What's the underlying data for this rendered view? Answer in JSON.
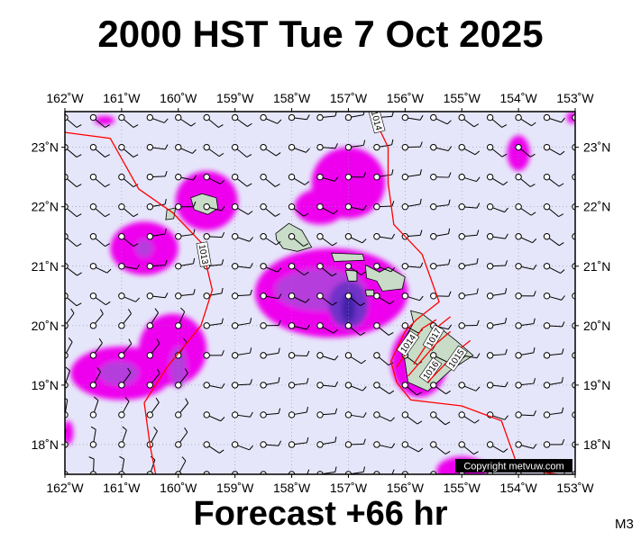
{
  "title": "2000 HST Tue 7 Oct 2025",
  "subtitle": "Forecast +66 hr",
  "model_code": "M3",
  "copyright": "Copyright metvuw.com",
  "colors": {
    "ocean": "#e6e6fa",
    "rain_light": "#ee00ee",
    "rain_medium": "#b43cdc",
    "rain_heavy": "#7030c8",
    "rain_peak": "#4020a8",
    "land": "#c8dcc8",
    "isobar": "#ff0000",
    "frame": "#000000"
  },
  "map": {
    "lon_range": [
      -162,
      -153
    ],
    "lat_range": [
      17.5,
      23.6
    ],
    "lon_ticks": [
      {
        "value": -162,
        "label": "162˚W"
      },
      {
        "value": -161,
        "label": "161˚W"
      },
      {
        "value": -160,
        "label": "160˚W"
      },
      {
        "value": -159,
        "label": "159˚W"
      },
      {
        "value": -158,
        "label": "158˚W"
      },
      {
        "value": -157,
        "label": "157˚W"
      },
      {
        "value": -156,
        "label": "156˚W"
      },
      {
        "value": -155,
        "label": "155˚W"
      },
      {
        "value": -154,
        "label": "154˚W"
      },
      {
        "value": -153,
        "label": "153˚W"
      }
    ],
    "lat_ticks": [
      {
        "value": 18,
        "label": "18˚N"
      },
      {
        "value": 19,
        "label": "19˚N"
      },
      {
        "value": 20,
        "label": "20˚N"
      },
      {
        "value": 21,
        "label": "21˚N"
      },
      {
        "value": 22,
        "label": "22˚N"
      },
      {
        "value": 23,
        "label": "23˚N"
      }
    ],
    "isobars": [
      {
        "label": "1013",
        "label_at": [
          -159.55,
          21.2
        ],
        "label_rot": 80,
        "points": [
          [
            -162.0,
            23.25
          ],
          [
            -161.2,
            23.15
          ],
          [
            -160.7,
            22.3
          ],
          [
            -160.1,
            21.9
          ],
          [
            -159.6,
            21.4
          ],
          [
            -159.4,
            20.6
          ],
          [
            -159.6,
            20.0
          ],
          [
            -160.2,
            19.3
          ],
          [
            -160.6,
            18.7
          ],
          [
            -160.5,
            18.0
          ],
          [
            -160.4,
            17.5
          ]
        ]
      },
      {
        "label": "1014",
        "label_at": [
          -156.5,
          23.45
        ],
        "label_rot": 75,
        "points": [
          [
            -156.6,
            23.6
          ],
          [
            -156.3,
            23.0
          ],
          [
            -156.3,
            22.4
          ],
          [
            -156.2,
            21.7
          ],
          [
            -155.7,
            21.2
          ],
          [
            -155.4,
            20.4
          ],
          [
            -155.8,
            20.1
          ],
          [
            -156.0,
            19.9
          ],
          [
            -156.25,
            19.4
          ],
          [
            -156.15,
            19.05
          ],
          [
            -155.9,
            18.75
          ],
          [
            -155.0,
            18.65
          ],
          [
            -154.3,
            18.4
          ],
          [
            -154.0,
            17.6
          ],
          [
            -153.3,
            17.5
          ],
          [
            -152.9,
            17.4
          ]
        ]
      },
      {
        "label": "1014",
        "label_at": [
          -155.95,
          19.7
        ],
        "label_rot": -55,
        "points": [
          [
            -156.15,
            19.3
          ],
          [
            -155.7,
            19.95
          ],
          [
            -155.45,
            20.1
          ]
        ]
      },
      {
        "label": "1017",
        "label_at": [
          -155.5,
          19.8
        ],
        "label_rot": -60,
        "points": [
          [
            -155.85,
            19.35
          ],
          [
            -155.4,
            20.0
          ],
          [
            -155.2,
            20.15
          ]
        ]
      },
      {
        "label": "1016",
        "label_at": [
          -155.55,
          19.25
        ],
        "label_rot": -55,
        "points": [
          [
            -155.95,
            19.15
          ],
          [
            -155.45,
            19.7
          ],
          [
            -155.2,
            19.9
          ]
        ]
      },
      {
        "label": "1015",
        "label_at": [
          -155.1,
          19.45
        ],
        "label_rot": -55,
        "points": [
          [
            -155.6,
            19.05
          ],
          [
            -155.05,
            19.6
          ],
          [
            -154.85,
            19.75
          ]
        ]
      }
    ],
    "rain_areas": [
      {
        "level": "light",
        "center": [
          -157.3,
          20.55
        ],
        "radii": [
          1.35,
          0.75
        ]
      },
      {
        "level": "light",
        "center": [
          -157.0,
          22.4
        ],
        "radii": [
          0.65,
          0.6
        ]
      },
      {
        "level": "light",
        "center": [
          -157.5,
          22.0
        ],
        "radii": [
          0.45,
          0.3
        ]
      },
      {
        "level": "light",
        "center": [
          -159.5,
          22.1
        ],
        "radii": [
          0.55,
          0.5
        ]
      },
      {
        "level": "light",
        "center": [
          -160.6,
          21.3
        ],
        "radii": [
          0.6,
          0.45
        ]
      },
      {
        "level": "light",
        "center": [
          -160.1,
          19.6
        ],
        "radii": [
          0.6,
          0.6
        ]
      },
      {
        "level": "light",
        "center": [
          -161.0,
          19.2
        ],
        "radii": [
          0.9,
          0.45
        ]
      },
      {
        "level": "light",
        "center": [
          -155.75,
          19.4
        ],
        "radii": [
          0.5,
          0.6
        ]
      },
      {
        "level": "light",
        "center": [
          -154.0,
          22.9
        ],
        "radii": [
          0.2,
          0.3
        ]
      },
      {
        "level": "light",
        "center": [
          -155.0,
          17.55
        ],
        "radii": [
          0.45,
          0.25
        ]
      },
      {
        "level": "light",
        "center": [
          -161.3,
          23.45
        ],
        "radii": [
          0.18,
          0.08
        ]
      },
      {
        "level": "light",
        "center": [
          -153.05,
          23.5
        ],
        "radii": [
          0.1,
          0.1
        ]
      },
      {
        "level": "light",
        "center": [
          -161.95,
          18.2
        ],
        "radii": [
          0.1,
          0.2
        ]
      },
      {
        "level": "medium",
        "center": [
          -157.5,
          20.6
        ],
        "radii": [
          0.8,
          0.35
        ]
      },
      {
        "level": "medium",
        "center": [
          -161.05,
          19.2
        ],
        "radii": [
          0.35,
          0.2
        ]
      },
      {
        "level": "medium",
        "center": [
          -160.0,
          19.3
        ],
        "radii": [
          0.15,
          0.35
        ]
      },
      {
        "level": "medium",
        "center": [
          -160.6,
          21.3
        ],
        "radii": [
          0.15,
          0.15
        ]
      },
      {
        "level": "heavy",
        "center": [
          -157.0,
          20.35
        ],
        "radii": [
          0.35,
          0.4
        ]
      },
      {
        "level": "peak",
        "center": [
          -157.0,
          20.3
        ],
        "radii": [
          0.12,
          0.25
        ]
      }
    ],
    "islands": [
      {
        "name_hidden": "Kauai",
        "points": [
          [
            -159.78,
            22.15
          ],
          [
            -159.58,
            22.22
          ],
          [
            -159.33,
            22.15
          ],
          [
            -159.3,
            21.97
          ],
          [
            -159.48,
            21.87
          ],
          [
            -159.72,
            21.95
          ]
        ]
      },
      {
        "name_hidden": "Niihau",
        "points": [
          [
            -160.2,
            21.95
          ],
          [
            -160.05,
            21.98
          ],
          [
            -160.08,
            21.8
          ],
          [
            -160.22,
            21.78
          ]
        ]
      },
      {
        "name_hidden": "Oahu",
        "points": [
          [
            -158.28,
            21.55
          ],
          [
            -158.05,
            21.72
          ],
          [
            -157.82,
            21.6
          ],
          [
            -157.65,
            21.32
          ],
          [
            -157.9,
            21.25
          ],
          [
            -158.15,
            21.3
          ],
          [
            -158.27,
            21.45
          ]
        ]
      },
      {
        "name_hidden": "Molokai",
        "points": [
          [
            -157.3,
            21.22
          ],
          [
            -156.75,
            21.2
          ],
          [
            -156.72,
            21.1
          ],
          [
            -157.25,
            21.08
          ]
        ]
      },
      {
        "name_hidden": "Lanai",
        "points": [
          [
            -157.05,
            20.93
          ],
          [
            -156.85,
            20.92
          ],
          [
            -156.85,
            20.75
          ],
          [
            -157.0,
            20.75
          ]
        ]
      },
      {
        "name_hidden": "Maui",
        "points": [
          [
            -156.7,
            21.02
          ],
          [
            -156.45,
            20.9
          ],
          [
            -156.3,
            20.98
          ],
          [
            -156.0,
            20.82
          ],
          [
            -156.05,
            20.62
          ],
          [
            -156.4,
            20.58
          ],
          [
            -156.5,
            20.75
          ],
          [
            -156.68,
            20.8
          ]
        ]
      },
      {
        "name_hidden": "Kahoolawe",
        "points": [
          [
            -156.7,
            20.6
          ],
          [
            -156.55,
            20.6
          ],
          [
            -156.55,
            20.5
          ],
          [
            -156.68,
            20.5
          ]
        ]
      },
      {
        "name_hidden": "Hawaii",
        "points": [
          [
            -155.9,
            20.25
          ],
          [
            -155.7,
            20.2
          ],
          [
            -155.1,
            19.75
          ],
          [
            -154.8,
            19.5
          ],
          [
            -155.2,
            19.25
          ],
          [
            -155.6,
            18.9
          ],
          [
            -155.95,
            19.05
          ],
          [
            -156.05,
            19.7
          ],
          [
            -155.85,
            20.05
          ]
        ]
      }
    ]
  }
}
